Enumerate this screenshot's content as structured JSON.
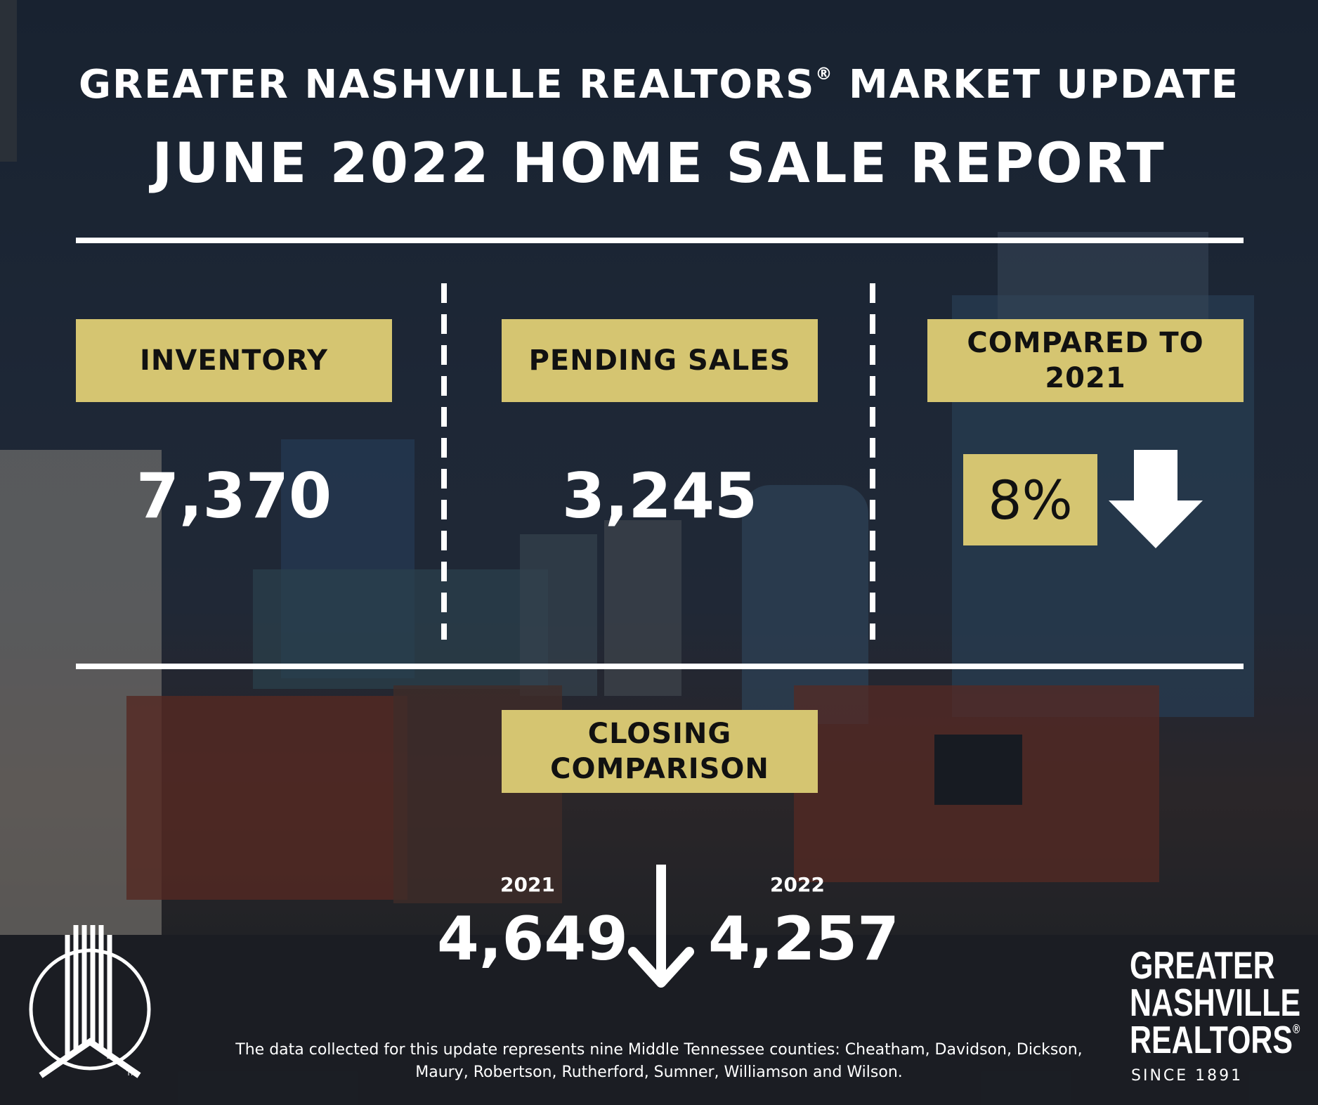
{
  "header": {
    "title_line1": "GREATER NASHVILLE REALTORS",
    "registered_mark": "®",
    "title_line1_end": " MARKET UPDATE",
    "title_line2": "JUNE 2022 HOME SALE REPORT"
  },
  "inventory": {
    "label": "INVENTORY",
    "value": "7,370"
  },
  "pending_sales": {
    "label": "PENDING SALES",
    "value": "3,245"
  },
  "comparison": {
    "label": "COMPARED TO 2021",
    "percent": "8%",
    "direction": "down"
  },
  "closing": {
    "label": "CLOSING COMPARISON",
    "year_prev": "2021",
    "value_prev": "4,649",
    "year_curr": "2022",
    "value_curr": "4,257",
    "direction": "down"
  },
  "footnote": "The data collected for this update represents nine Middle Tennessee counties: Cheatham, Davidson, Dickson, Maury, Robertson, Rutherford, Sumner, Williamson and Wilson.",
  "brand": {
    "line1": "GREATER",
    "line2": "NASHVILLE",
    "line3": "REALTORS",
    "registered_mark": "®",
    "since": "SINCE 1891",
    "logo_tm": "TM"
  },
  "colors": {
    "accent_gold": "#d5c571",
    "text_white": "#ffffff",
    "label_text": "#111111"
  }
}
